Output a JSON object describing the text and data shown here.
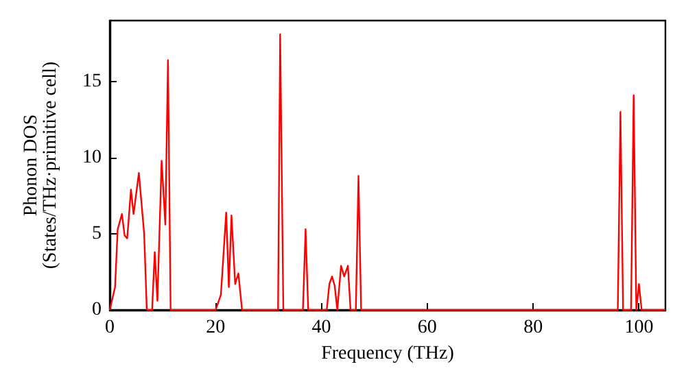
{
  "chart_data": {
    "type": "line",
    "xlabel": "Frequency (THz)",
    "ylabel": "Phonon DOS\n(States/THz·primitive cell)",
    "xlim": [
      0,
      105
    ],
    "ylim": [
      0,
      19
    ],
    "xticks": [
      0,
      20,
      40,
      60,
      80,
      100
    ],
    "yticks": [
      0,
      5,
      10,
      15
    ],
    "grid": false,
    "marker": "none",
    "line_style": "solid",
    "series": [
      {
        "color": "#ff0000",
        "x": [
          0,
          1,
          1.5,
          2.3,
          2.8,
          3.3,
          4,
          4.5,
          5.5,
          6.5,
          7,
          8,
          8.5,
          9,
          9.8,
          10.5,
          11,
          11.5,
          20,
          21,
          22,
          22.5,
          23,
          23.7,
          24.3,
          25,
          31.8,
          32.2,
          32.8,
          36.5,
          37,
          37.5,
          41,
          41.5,
          42,
          42.5,
          43,
          43.7,
          44.3,
          45,
          45.5,
          46.5,
          47,
          47.5,
          96,
          96.5,
          97,
          98.5,
          99,
          99.5,
          100,
          100.5,
          105
        ],
        "values": [
          0,
          1.5,
          5.3,
          6.3,
          4.9,
          4.7,
          7.9,
          6.3,
          9,
          5,
          0,
          0,
          3.8,
          0.6,
          9.8,
          5.6,
          16.4,
          0,
          0,
          1,
          6.4,
          1.5,
          6.2,
          1.7,
          2.4,
          0,
          0,
          18.1,
          0,
          0,
          5.3,
          0,
          0,
          1.7,
          2.2,
          1.6,
          0,
          2.9,
          2.2,
          2.9,
          0,
          0,
          8.8,
          0,
          0,
          13,
          0,
          0,
          14.1,
          0,
          1.7,
          0,
          0
        ]
      }
    ]
  }
}
